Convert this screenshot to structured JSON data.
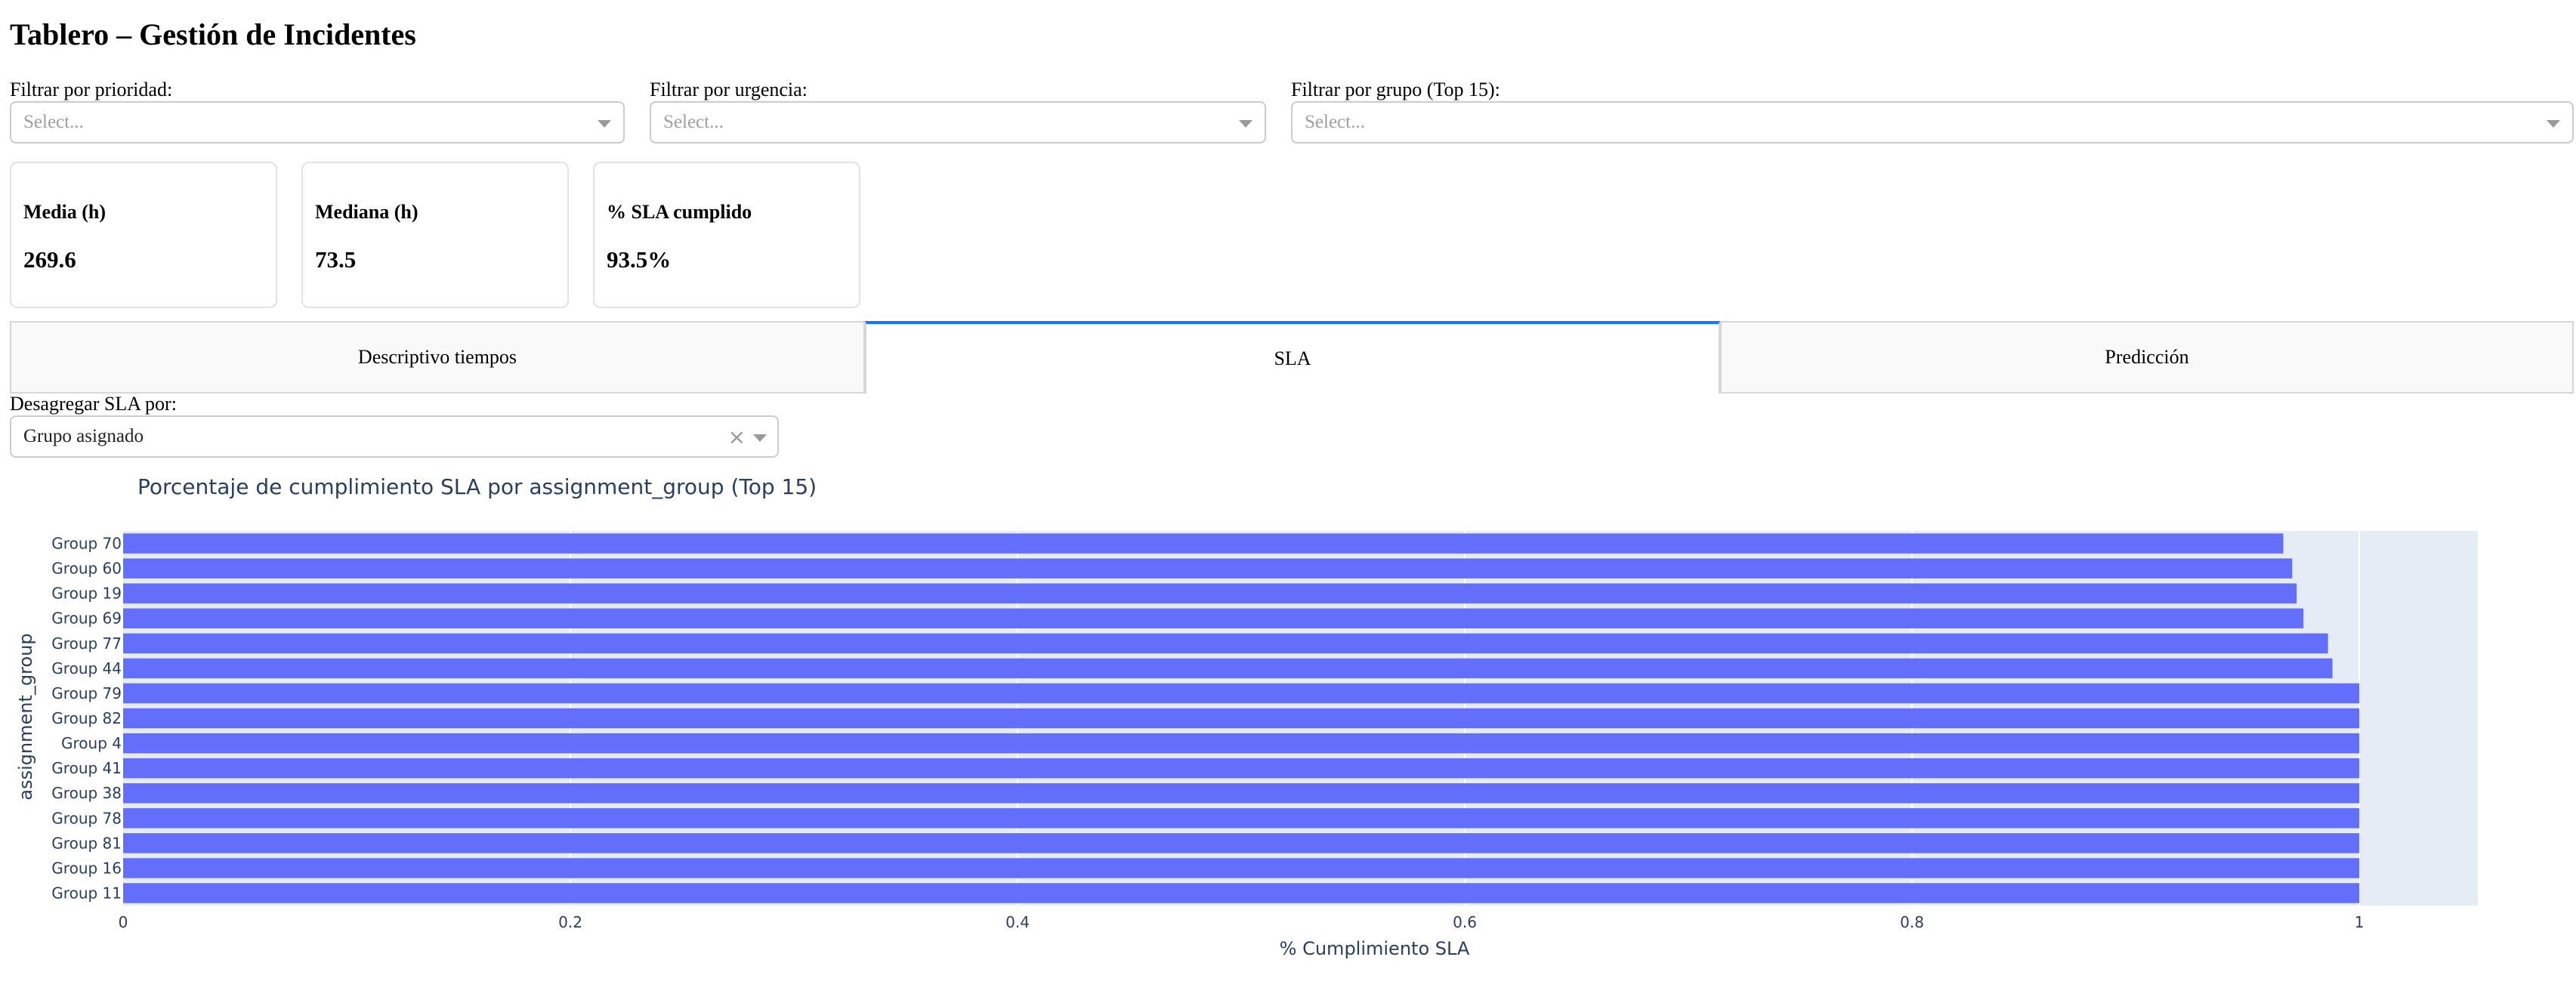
{
  "page": {
    "title": "Tablero – Gestión de Incidentes"
  },
  "filters": [
    {
      "label": "Filtrar por prioridad:",
      "placeholder": "Select..."
    },
    {
      "label": "Filtrar por urgencia:",
      "placeholder": "Select..."
    },
    {
      "label": "Filtrar por grupo (Top 15):",
      "placeholder": "Select..."
    }
  ],
  "kpis": [
    {
      "label": "Media (h)",
      "value": "269.6"
    },
    {
      "label": "Mediana (h)",
      "value": "73.5"
    },
    {
      "label": "% SLA cumplido",
      "value": "93.5%"
    }
  ],
  "tabs": [
    {
      "label": "Descriptivo tiempos",
      "active": false
    },
    {
      "label": "SLA",
      "active": true
    },
    {
      "label": "Predicción",
      "active": false
    }
  ],
  "breakdown": {
    "label": "Desagregar SLA por:",
    "value": "Grupo asignado"
  },
  "chart_data": {
    "type": "bar",
    "orientation": "horizontal",
    "title": "Porcentaje de cumplimiento SLA por assignment_group (Top 15)",
    "xlabel": "% Cumplimiento SLA",
    "ylabel": "assignment_group",
    "xlim": [
      0,
      1.053
    ],
    "xticks": [
      0,
      0.2,
      0.4,
      0.6,
      0.8,
      1
    ],
    "xtick_labels": [
      "0",
      "0.2",
      "0.4",
      "0.6",
      "0.8",
      "1"
    ],
    "grid": true,
    "bar_color": "#636efa",
    "plot_bg": "#e5ecf6",
    "categories": [
      "Group 70",
      "Group 60",
      "Group 19",
      "Group 69",
      "Group 77",
      "Group 44",
      "Group 79",
      "Group 82",
      "Group 4",
      "Group 41",
      "Group 38",
      "Group 78",
      "Group 81",
      "Group 16",
      "Group 11"
    ],
    "values": [
      0.966,
      0.97,
      0.972,
      0.975,
      0.986,
      0.988,
      1,
      1,
      1,
      1,
      1,
      1,
      1,
      1,
      1
    ]
  }
}
